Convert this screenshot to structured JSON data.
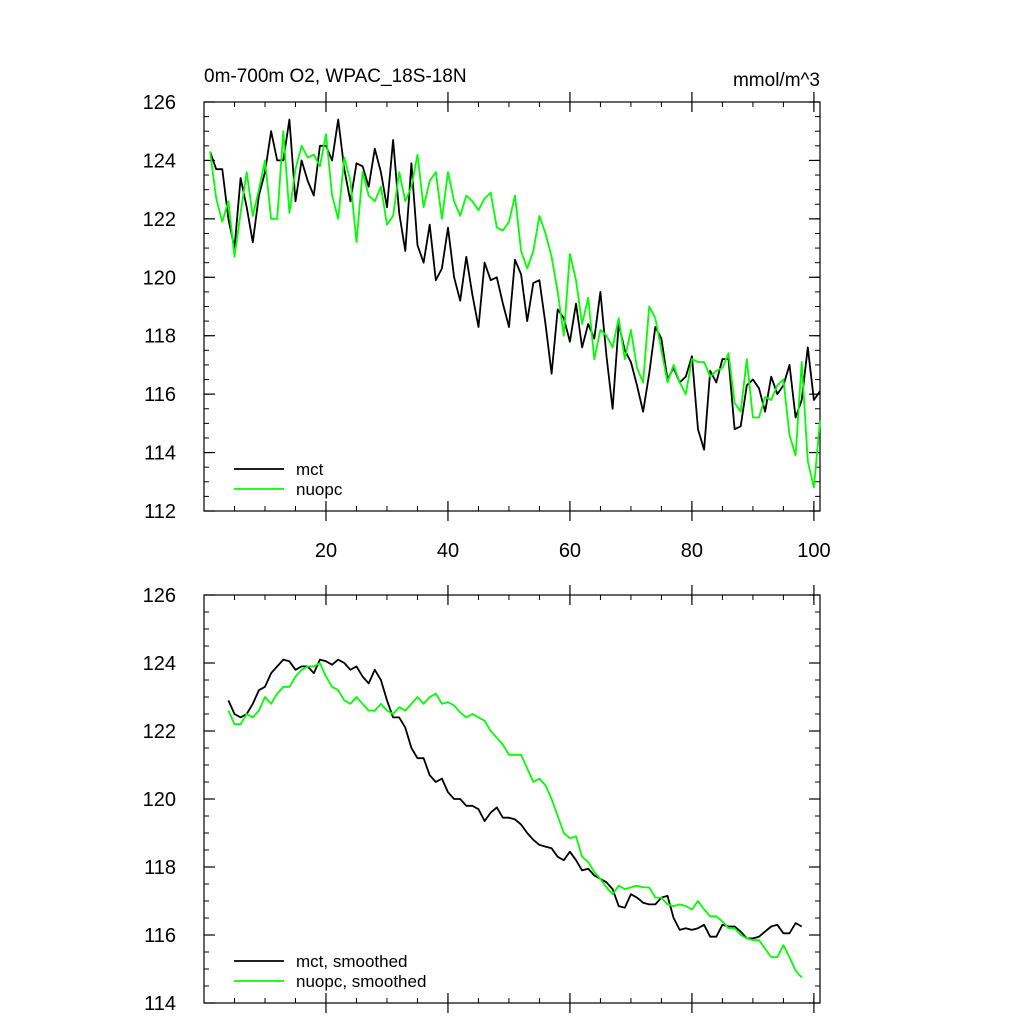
{
  "chart_data": [
    {
      "type": "line",
      "title_left": "0m-700m O2, WPAC_18S-18N",
      "title_right": "mmol/m^3",
      "xlabel": "",
      "ylabel": "",
      "xlim": [
        0,
        101
      ],
      "ylim": [
        112,
        126
      ],
      "x_ticks": [
        20,
        40,
        60,
        80,
        100
      ],
      "y_ticks": [
        112,
        114,
        116,
        118,
        120,
        122,
        124,
        126
      ],
      "x_tick_labels": [
        "20",
        "40",
        "60",
        "80",
        "100"
      ],
      "y_tick_labels": [
        "112",
        "114",
        "116",
        "118",
        "120",
        "122",
        "124",
        "126"
      ],
      "legend_position": "bottom-left",
      "series": [
        {
          "name": "mct",
          "color": "#000000",
          "x": [
            1,
            2,
            3,
            4,
            5,
            6,
            7,
            8,
            9,
            10,
            11,
            12,
            13,
            14,
            15,
            16,
            17,
            18,
            19,
            20,
            21,
            22,
            23,
            24,
            25,
            26,
            27,
            28,
            29,
            30,
            31,
            32,
            33,
            34,
            35,
            36,
            37,
            38,
            39,
            40,
            41,
            42,
            43,
            44,
            45,
            46,
            47,
            48,
            49,
            50,
            51,
            52,
            53,
            54,
            55,
            56,
            57,
            58,
            59,
            60,
            61,
            62,
            63,
            64,
            65,
            66,
            67,
            68,
            69,
            70,
            71,
            72,
            73,
            74,
            75,
            76,
            77,
            78,
            79,
            80,
            81,
            82,
            83,
            84,
            85,
            86,
            87,
            88,
            89,
            90,
            91,
            92,
            93,
            94,
            95,
            96,
            97,
            98,
            99,
            100,
            101
          ],
          "values": [
            124.3,
            123.7,
            123.7,
            122.0,
            121.0,
            123.4,
            122.4,
            121.2,
            122.8,
            123.6,
            125.0,
            124.0,
            124.0,
            125.4,
            122.6,
            124.0,
            123.3,
            122.8,
            124.5,
            124.5,
            124.0,
            125.4,
            123.7,
            122.6,
            123.9,
            123.8,
            123.1,
            124.4,
            123.6,
            122.4,
            124.7,
            122.2,
            120.9,
            123.9,
            121.1,
            120.5,
            121.8,
            119.9,
            120.3,
            121.7,
            120.0,
            119.2,
            120.7,
            119.4,
            118.3,
            120.5,
            119.9,
            120.0,
            119.1,
            118.3,
            120.6,
            120.1,
            118.5,
            119.8,
            119.9,
            118.4,
            116.7,
            118.9,
            118.6,
            117.8,
            119.1,
            117.6,
            118.4,
            117.9,
            119.5,
            117.3,
            115.5,
            118.4,
            117.5,
            117.1,
            116.3,
            115.4,
            116.7,
            118.3,
            117.9,
            116.5,
            116.9,
            116.4,
            116.6,
            117.3,
            114.8,
            114.1,
            116.8,
            116.4,
            117.2,
            117.2,
            114.8,
            114.9,
            116.3,
            116.5,
            116.2,
            115.4,
            116.6,
            116.0,
            116.3,
            117.0,
            115.2,
            115.8,
            117.6,
            115.8,
            116.1
          ]
        },
        {
          "name": "nuopc",
          "color": "#00ff00",
          "x": [
            1,
            2,
            3,
            4,
            5,
            6,
            7,
            8,
            9,
            10,
            11,
            12,
            13,
            14,
            15,
            16,
            17,
            18,
            19,
            20,
            21,
            22,
            23,
            24,
            25,
            26,
            27,
            28,
            29,
            30,
            31,
            32,
            33,
            34,
            35,
            36,
            37,
            38,
            39,
            40,
            41,
            42,
            43,
            44,
            45,
            46,
            47,
            48,
            49,
            50,
            51,
            52,
            53,
            54,
            55,
            56,
            57,
            58,
            59,
            60,
            61,
            62,
            63,
            64,
            65,
            66,
            67,
            68,
            69,
            70,
            71,
            72,
            73,
            74,
            75,
            76,
            77,
            78,
            79,
            80,
            81,
            82,
            83,
            84,
            85,
            86,
            87,
            88,
            89,
            90,
            91,
            92,
            93,
            94,
            95,
            96,
            97,
            98,
            99,
            100,
            101
          ],
          "values": [
            124.3,
            122.7,
            121.9,
            122.6,
            120.7,
            122.2,
            123.6,
            122.1,
            123.0,
            124.0,
            122.0,
            122.0,
            125.0,
            122.2,
            123.7,
            124.5,
            124.1,
            124.2,
            123.8,
            124.9,
            122.8,
            122.0,
            124.1,
            123.3,
            121.2,
            123.6,
            122.8,
            122.6,
            123.1,
            121.8,
            122.1,
            123.6,
            122.6,
            123.1,
            124.2,
            122.4,
            123.3,
            123.6,
            122.0,
            123.6,
            122.6,
            122.1,
            122.8,
            122.6,
            122.3,
            122.7,
            122.9,
            121.7,
            121.6,
            121.9,
            122.8,
            120.9,
            120.3,
            120.9,
            122.1,
            121.5,
            120.7,
            119.5,
            118.0,
            120.8,
            119.9,
            118.4,
            119.3,
            117.2,
            118.2,
            118.0,
            117.6,
            118.6,
            117.2,
            118.2,
            116.9,
            116.4,
            119.0,
            118.6,
            117.5,
            116.4,
            117.0,
            116.4,
            116.0,
            117.2,
            117.1,
            117.1,
            116.6,
            116.8,
            116.9,
            117.4,
            115.7,
            115.4,
            117.2,
            115.2,
            115.2,
            115.9,
            115.8,
            116.3,
            116.5,
            114.6,
            113.9,
            117.1,
            113.7,
            112.8,
            115.1
          ]
        }
      ]
    },
    {
      "type": "line",
      "title_left": "",
      "title_right": "",
      "xlabel": "",
      "ylabel": "",
      "xlim": [
        0,
        101
      ],
      "ylim": [
        114,
        126
      ],
      "x_ticks": [
        20,
        40,
        60,
        80,
        100
      ],
      "y_ticks": [
        114,
        116,
        118,
        120,
        122,
        124,
        126
      ],
      "x_tick_labels": [],
      "y_tick_labels": [
        "114",
        "116",
        "118",
        "120",
        "122",
        "124",
        "126"
      ],
      "legend_position": "bottom-left",
      "series": [
        {
          "name": "mct, smoothed",
          "color": "#000000",
          "x": [
            4,
            5,
            6,
            7,
            8,
            9,
            10,
            11,
            12,
            13,
            14,
            15,
            16,
            17,
            18,
            19,
            20,
            21,
            22,
            23,
            24,
            25,
            26,
            27,
            28,
            29,
            30,
            31,
            32,
            33,
            34,
            35,
            36,
            37,
            38,
            39,
            40,
            41,
            42,
            43,
            44,
            45,
            46,
            47,
            48,
            49,
            50,
            51,
            52,
            53,
            54,
            55,
            56,
            57,
            58,
            59,
            60,
            61,
            62,
            63,
            64,
            65,
            66,
            67,
            68,
            69,
            70,
            71,
            72,
            73,
            74,
            75,
            76,
            77,
            78,
            79,
            80,
            81,
            82,
            83,
            84,
            85,
            86,
            87,
            88,
            89,
            90,
            91,
            92,
            93,
            94,
            95,
            96,
            97,
            98
          ],
          "values": [
            122.9,
            122.5,
            122.4,
            122.5,
            122.8,
            123.2,
            123.3,
            123.7,
            123.9,
            124.1,
            124.05,
            123.8,
            123.9,
            123.9,
            123.7,
            124.1,
            124.05,
            123.95,
            124.1,
            124.0,
            123.8,
            123.9,
            123.6,
            123.4,
            123.8,
            123.5,
            122.9,
            122.4,
            122.4,
            122.1,
            121.5,
            121.2,
            121.2,
            120.7,
            120.5,
            120.6,
            120.2,
            120.0,
            120.0,
            119.8,
            119.8,
            119.7,
            119.35,
            119.6,
            119.75,
            119.45,
            119.45,
            119.4,
            119.25,
            119.0,
            118.8,
            118.65,
            118.6,
            118.55,
            118.3,
            118.2,
            118.45,
            118.2,
            117.9,
            117.95,
            117.75,
            117.65,
            117.55,
            117.35,
            116.85,
            116.8,
            117.2,
            117.1,
            116.95,
            116.9,
            116.9,
            117.1,
            117.15,
            116.5,
            116.15,
            116.2,
            116.15,
            116.2,
            116.3,
            115.95,
            115.95,
            116.3,
            116.25,
            116.25,
            116.1,
            115.9,
            115.9,
            115.95,
            116.1,
            116.25,
            116.3,
            116.05,
            116.05,
            116.35,
            116.25
          ]
        },
        {
          "name": "nuopc, smoothed",
          "color": "#00ff00",
          "x": [
            4,
            5,
            6,
            7,
            8,
            9,
            10,
            11,
            12,
            13,
            14,
            15,
            16,
            17,
            18,
            19,
            20,
            21,
            22,
            23,
            24,
            25,
            26,
            27,
            28,
            29,
            30,
            31,
            32,
            33,
            34,
            35,
            36,
            37,
            38,
            39,
            40,
            41,
            42,
            43,
            44,
            45,
            46,
            47,
            48,
            49,
            50,
            51,
            52,
            53,
            54,
            55,
            56,
            57,
            58,
            59,
            60,
            61,
            62,
            63,
            64,
            65,
            66,
            67,
            68,
            69,
            70,
            71,
            72,
            73,
            74,
            75,
            76,
            77,
            78,
            79,
            80,
            81,
            82,
            83,
            84,
            85,
            86,
            87,
            88,
            89,
            90,
            91,
            92,
            93,
            94,
            95,
            96,
            97,
            98
          ],
          "values": [
            122.6,
            122.2,
            122.2,
            122.5,
            122.4,
            122.6,
            123.0,
            122.8,
            123.1,
            123.3,
            123.3,
            123.6,
            123.8,
            123.9,
            123.9,
            124.0,
            123.6,
            123.3,
            123.2,
            122.9,
            122.8,
            123.0,
            122.8,
            122.6,
            122.6,
            122.8,
            122.6,
            122.5,
            122.7,
            122.6,
            122.8,
            123.0,
            122.8,
            123.0,
            123.1,
            122.8,
            122.85,
            122.75,
            122.55,
            122.4,
            122.5,
            122.4,
            122.3,
            122.0,
            121.8,
            121.6,
            121.3,
            121.3,
            121.3,
            120.9,
            120.5,
            120.6,
            120.4,
            120.0,
            119.5,
            119.0,
            118.85,
            118.9,
            118.3,
            118.15,
            117.85,
            117.65,
            117.4,
            117.2,
            117.45,
            117.35,
            117.4,
            117.45,
            117.4,
            117.4,
            117.1,
            117.1,
            116.9,
            116.85,
            116.9,
            116.85,
            116.75,
            117.0,
            116.75,
            116.55,
            116.55,
            116.4,
            116.2,
            116.2,
            116.0,
            115.9,
            115.85,
            115.85,
            115.6,
            115.35,
            115.35,
            115.7,
            115.35,
            114.95,
            114.75
          ]
        }
      ]
    }
  ]
}
